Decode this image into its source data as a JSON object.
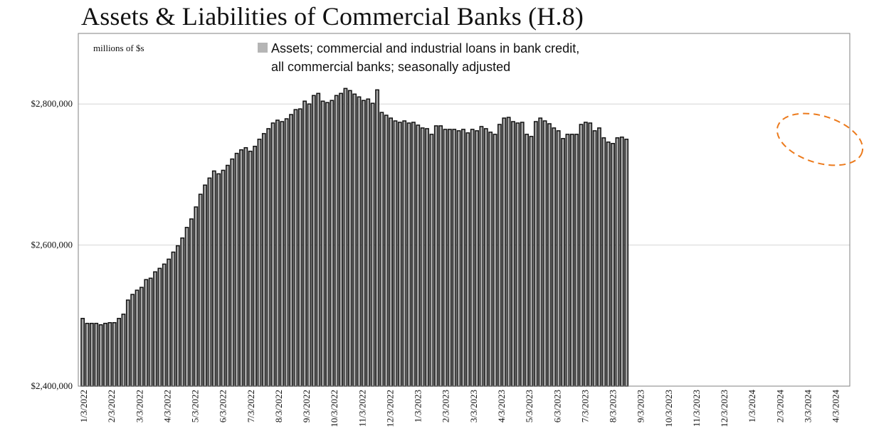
{
  "title": "Assets & Liabilities of Commercial Banks (H.8)",
  "colors": {
    "bar_fill": "#a6a6a6",
    "bar_stroke": "#111111",
    "gridline": "#d4d4d4",
    "annotation": "#ec7a1c"
  },
  "chart_data": {
    "type": "bar",
    "unit_label": "millions of $s",
    "legend": {
      "line1": "Assets; commercial and industrial loans in bank credit,",
      "line2": "all commercial banks; seasonally adjusted",
      "placement": "top-center"
    },
    "ylim": [
      2400000,
      2900000
    ],
    "y_ticks": [
      {
        "value": 2400000,
        "label": "$2,400,000"
      },
      {
        "value": 2600000,
        "label": "$2,600,000"
      },
      {
        "value": 2800000,
        "label": "$2,800,000"
      }
    ],
    "x_ticks": [
      "1/3/2022",
      "2/3/2022",
      "3/3/2022",
      "4/3/2022",
      "5/3/2022",
      "6/3/2022",
      "7/3/2022",
      "8/3/2022",
      "9/3/2022",
      "10/3/2022",
      "11/3/2022",
      "12/3/2022",
      "1/3/2023",
      "2/3/2023",
      "3/3/2023",
      "4/3/2023",
      "5/3/2023",
      "6/3/2023",
      "7/3/2023",
      "8/3/2023",
      "9/3/2023",
      "10/3/2023",
      "11/3/2023",
      "12/3/2023",
      "1/3/2024",
      "2/3/2024",
      "3/3/2024",
      "4/3/2024"
    ],
    "grid": "horizontal",
    "annotation": "dashed orange ellipse around latest values",
    "series": [
      {
        "values": [
          2496000,
          2489000,
          2489000,
          2489000,
          2487000,
          2489000,
          2490000,
          2490000,
          2496000,
          2502000,
          2522000,
          2530000,
          2536000,
          2540000,
          2551000,
          2553000,
          2562000,
          2567000,
          2573000,
          2580000,
          2590000,
          2599000,
          2610000,
          2625000,
          2637000,
          2654000,
          2672000,
          2685000,
          2695000,
          2705000,
          2701000,
          2706000,
          2713000,
          2722000,
          2730000,
          2735000,
          2738000,
          2733000,
          2740000,
          2750000,
          2758000,
          2765000,
          2773000,
          2777000,
          2775000,
          2779000,
          2785000,
          2792000,
          2793000,
          2804000,
          2800000,
          2812000,
          2815000,
          2804000,
          2802000,
          2805000,
          2812000,
          2815000,
          2822000,
          2819000,
          2814000,
          2810000,
          2805000,
          2807000,
          2801000,
          2820000,
          2788000,
          2784000,
          2780000,
          2776000,
          2774000,
          2776000,
          2773000,
          2774000,
          2770000,
          2766000,
          2765000,
          2757000,
          2769000,
          2769000,
          2764000,
          2764000,
          2764000,
          2762000,
          2764000,
          2759000,
          2764000,
          2762000,
          2768000,
          2765000,
          2760000,
          2757000,
          2771000,
          2780000,
          2781000,
          2775000,
          2773000,
          2774000,
          2757000,
          2754000,
          2775000,
          2780000,
          2776000,
          2772000,
          2766000,
          2762000,
          2751000,
          2757000,
          2757000,
          2757000,
          2771000,
          2774000,
          2773000,
          2762000,
          2766000,
          2752000,
          2746000,
          2744000,
          2752000,
          2753000,
          2750000
        ]
      }
    ]
  }
}
